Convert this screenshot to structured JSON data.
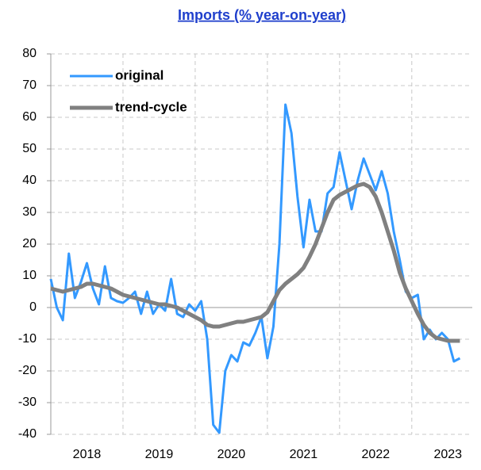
{
  "chart_data": {
    "type": "line",
    "title": "Imports (% year-on-year)",
    "categories": [
      null,
      null,
      null,
      null,
      null,
      null,
      "2018",
      null,
      null,
      null,
      null,
      null,
      null,
      null,
      null,
      null,
      null,
      null,
      "2019",
      null,
      null,
      null,
      null,
      null,
      null,
      null,
      null,
      null,
      null,
      null,
      "2020",
      null,
      null,
      null,
      null,
      null,
      null,
      null,
      null,
      null,
      null,
      null,
      "2021",
      null,
      null,
      null,
      null,
      null,
      null,
      null,
      null,
      null,
      null,
      null,
      "2022",
      null,
      null,
      null,
      null,
      null,
      null,
      null,
      null,
      null,
      null,
      null,
      "2023",
      null,
      null
    ],
    "series": [
      {
        "name": "original",
        "color": "#3399ff",
        "values": [
          9,
          0,
          -4,
          17,
          3,
          8,
          14,
          6,
          1,
          13,
          3,
          2,
          1.5,
          3,
          5,
          -2,
          5,
          -2,
          1,
          -1,
          9,
          -2,
          -3,
          1,
          -1,
          2,
          -10,
          -37,
          -39.5,
          -20,
          -15,
          -17,
          -11,
          -12,
          -8,
          -3,
          -16,
          -6,
          20,
          64,
          55,
          35,
          19,
          34,
          24,
          24,
          36,
          38,
          49,
          40,
          31,
          40,
          47,
          42,
          37,
          43,
          36,
          24,
          15,
          5,
          3,
          4,
          -10,
          -7,
          -10,
          -8,
          -10,
          -17,
          -16
        ]
      },
      {
        "name": "trend-cycle",
        "color": "#808080",
        "values": [
          6,
          5.5,
          5,
          5.5,
          6,
          6.5,
          7.5,
          7.5,
          7,
          6.5,
          6,
          5,
          4,
          3.5,
          3,
          2.5,
          2,
          1.5,
          1,
          1,
          0.5,
          0,
          -1,
          -2,
          -3,
          -4,
          -5.5,
          -6,
          -6,
          -5.5,
          -5,
          -4.5,
          -4.5,
          -4,
          -3.5,
          -3,
          -1.5,
          2,
          5.5,
          7.5,
          9,
          10.5,
          12.5,
          16,
          20,
          25,
          30,
          34,
          35.5,
          36.5,
          37.5,
          38.5,
          39,
          38,
          35,
          30,
          24,
          18,
          11,
          6,
          2,
          -2,
          -5.5,
          -8,
          -9.5,
          -10,
          -10.5,
          -10.5,
          -10.5
        ]
      }
    ],
    "ylim": [
      -40,
      80
    ],
    "yticks": [
      -40,
      -30,
      -20,
      -10,
      0,
      10,
      20,
      30,
      40,
      50,
      60,
      70,
      80
    ],
    "grid": true,
    "legend": "top-left"
  }
}
